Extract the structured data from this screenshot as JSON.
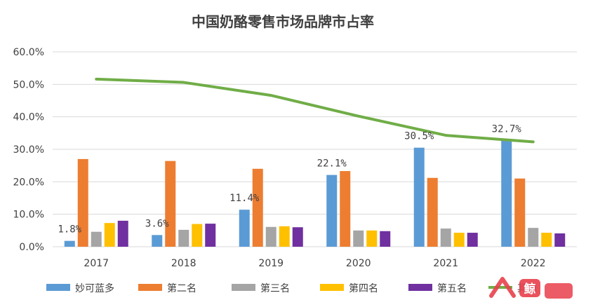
{
  "chart_data": {
    "type": "bar",
    "title": "中国奶酪零售市场品牌市占率",
    "categories": [
      "2017",
      "2018",
      "2019",
      "2020",
      "2021",
      "2022"
    ],
    "y_ticks": [
      "0.0%",
      "10.0%",
      "20.0%",
      "30.0%",
      "40.0%",
      "50.0%",
      "60.0%"
    ],
    "ylim": [
      0,
      60
    ],
    "grid": true,
    "legend_position": "bottom",
    "series": [
      {
        "name": "妙可蓝多",
        "kind": "bar",
        "color": "#5B9BD5",
        "values": [
          1.8,
          3.6,
          11.4,
          22.1,
          30.5,
          32.7
        ],
        "labels": [
          "1.8%",
          "3.6%",
          "11.4%",
          "22.1%",
          "30.5%",
          "32.7%"
        ]
      },
      {
        "name": "第二名",
        "kind": "bar",
        "color": "#ED7D31",
        "values": [
          27.0,
          26.4,
          24.0,
          23.3,
          21.2,
          21.0
        ]
      },
      {
        "name": "第三名",
        "kind": "bar",
        "color": "#A5A5A5",
        "values": [
          4.6,
          5.2,
          6.1,
          5.0,
          5.6,
          5.8
        ]
      },
      {
        "name": "第四名",
        "kind": "bar",
        "color": "#FFC000",
        "values": [
          7.3,
          7.0,
          6.3,
          5.0,
          4.3,
          4.3
        ]
      },
      {
        "name": "第五名",
        "kind": "bar",
        "color": "#7030A0",
        "values": [
          8.0,
          7.1,
          6.0,
          4.8,
          4.3,
          4.1
        ]
      },
      {
        "name": "其他",
        "kind": "line",
        "color": "#70AD47",
        "values": [
          51.6,
          50.6,
          46.6,
          40.2,
          34.3,
          32.3
        ]
      }
    ]
  },
  "watermark": {
    "text": "鲸",
    "color": "#E8404B"
  }
}
